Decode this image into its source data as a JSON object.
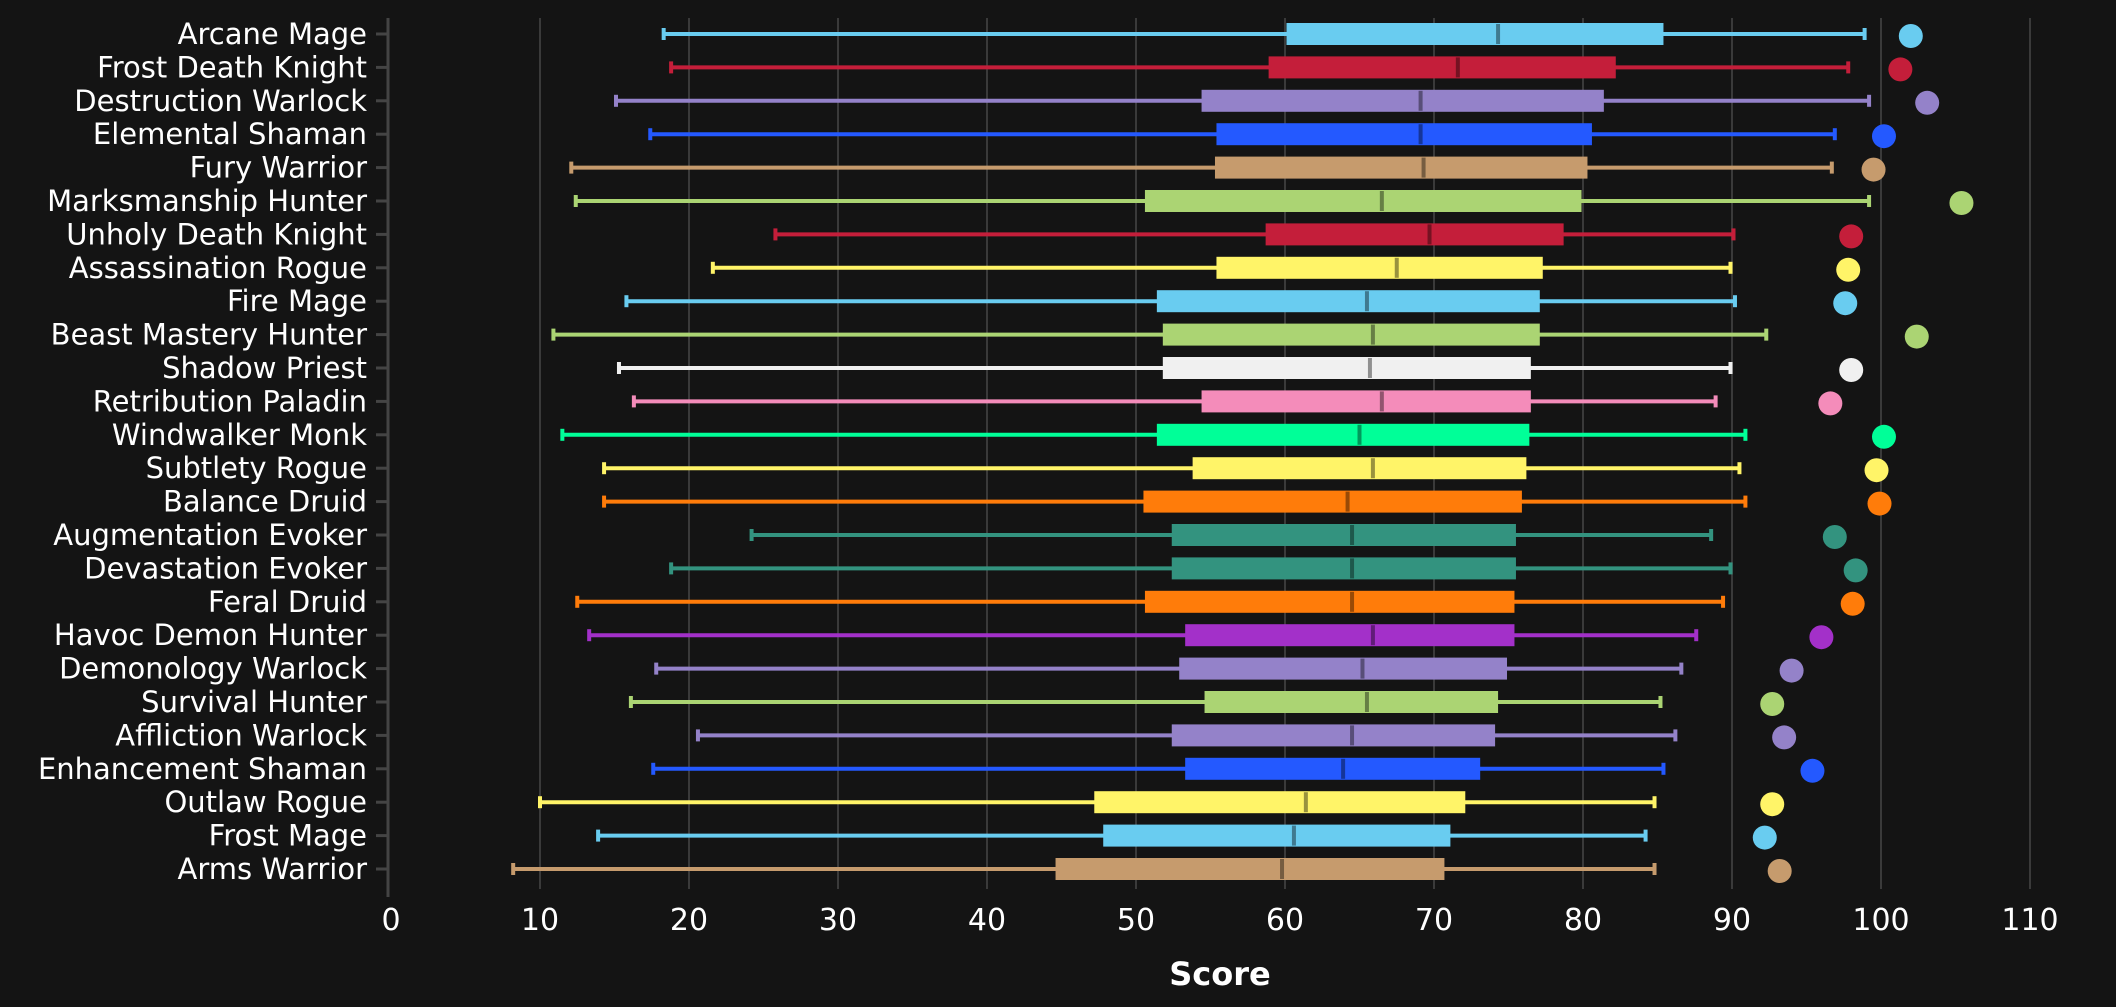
{
  "chart_data": {
    "type": "boxplot",
    "title": "",
    "xlabel": "Score",
    "ylabel": "",
    "xlim": [
      0,
      112
    ],
    "xticks": [
      0,
      10,
      20,
      30,
      40,
      50,
      60,
      70,
      80,
      90,
      100,
      110
    ],
    "grid": "vertical",
    "fields": [
      "whisker_low",
      "q1",
      "median",
      "q3",
      "whisker_high",
      "max_point"
    ],
    "series": [
      {
        "name": "Arcane Mage",
        "color": "#69ccf0",
        "values": [
          18.3,
          60.1,
          74.3,
          85.4,
          98.9,
          102.0
        ]
      },
      {
        "name": "Frost Death Knight",
        "color": "#c41e3a",
        "values": [
          18.8,
          58.9,
          71.6,
          82.2,
          97.8,
          101.3
        ]
      },
      {
        "name": "Destruction Warlock",
        "color": "#9482c9",
        "values": [
          15.1,
          54.4,
          69.1,
          81.4,
          99.2,
          103.1
        ]
      },
      {
        "name": "Elemental Shaman",
        "color": "#2459ff",
        "values": [
          17.4,
          55.4,
          69.1,
          80.6,
          96.9,
          100.2
        ]
      },
      {
        "name": "Fury Warrior",
        "color": "#c69b6d",
        "values": [
          12.1,
          55.3,
          69.3,
          80.3,
          96.7,
          99.5
        ]
      },
      {
        "name": "Marksmanship Hunter",
        "color": "#abd473",
        "values": [
          12.4,
          50.6,
          66.5,
          79.9,
          99.2,
          105.4
        ]
      },
      {
        "name": "Unholy Death Knight",
        "color": "#c41e3a",
        "values": [
          25.8,
          58.7,
          69.7,
          78.7,
          90.1,
          98.0
        ]
      },
      {
        "name": "Assassination Rogue",
        "color": "#fff468",
        "values": [
          21.6,
          55.4,
          67.5,
          77.3,
          89.9,
          97.8
        ]
      },
      {
        "name": "Fire Mage",
        "color": "#69ccf0",
        "values": [
          15.8,
          51.4,
          65.5,
          77.1,
          90.2,
          97.6
        ]
      },
      {
        "name": "Beast Mastery Hunter",
        "color": "#abd473",
        "values": [
          10.9,
          51.8,
          65.9,
          77.1,
          92.3,
          102.4
        ]
      },
      {
        "name": "Shadow Priest",
        "color": "#f0f0f0",
        "values": [
          15.3,
          51.8,
          65.7,
          76.5,
          89.9,
          98.0
        ]
      },
      {
        "name": "Retribution Paladin",
        "color": "#f48cba",
        "values": [
          16.3,
          54.4,
          66.5,
          76.5,
          88.9,
          96.6
        ]
      },
      {
        "name": "Windwalker Monk",
        "color": "#00ff98",
        "values": [
          11.5,
          51.4,
          65.0,
          76.4,
          90.9,
          100.2
        ]
      },
      {
        "name": "Subtlety Rogue",
        "color": "#fff468",
        "values": [
          14.3,
          53.8,
          65.9,
          76.2,
          90.5,
          99.7
        ]
      },
      {
        "name": "Balance Druid",
        "color": "#ff7c0a",
        "values": [
          14.3,
          50.5,
          64.2,
          75.9,
          90.9,
          99.9
        ]
      },
      {
        "name": "Augmentation Evoker",
        "color": "#33937f",
        "values": [
          24.2,
          52.4,
          64.5,
          75.5,
          88.6,
          96.9
        ]
      },
      {
        "name": "Devastation Evoker",
        "color": "#33937f",
        "values": [
          18.8,
          52.4,
          64.5,
          75.5,
          89.9,
          98.3
        ]
      },
      {
        "name": "Feral Druid",
        "color": "#ff7c0a",
        "values": [
          12.5,
          50.6,
          64.5,
          75.4,
          89.4,
          98.1
        ]
      },
      {
        "name": "Havoc Demon Hunter",
        "color": "#a330c9",
        "values": [
          13.3,
          53.3,
          65.9,
          75.4,
          87.6,
          96.0
        ]
      },
      {
        "name": "Demonology Warlock",
        "color": "#9482c9",
        "values": [
          17.8,
          52.9,
          65.2,
          74.9,
          86.6,
          94.0
        ]
      },
      {
        "name": "Survival Hunter",
        "color": "#abd473",
        "values": [
          16.1,
          54.6,
          65.5,
          74.3,
          85.2,
          92.7
        ]
      },
      {
        "name": "Affliction Warlock",
        "color": "#9482c9",
        "values": [
          20.6,
          52.4,
          64.5,
          74.1,
          86.2,
          93.5
        ]
      },
      {
        "name": "Enhancement Shaman",
        "color": "#2459ff",
        "values": [
          17.6,
          53.3,
          63.9,
          73.1,
          85.4,
          95.4
        ]
      },
      {
        "name": "Outlaw Rogue",
        "color": "#fff468",
        "values": [
          10.0,
          47.2,
          61.4,
          72.1,
          84.8,
          92.7
        ]
      },
      {
        "name": "Frost Mage",
        "color": "#69ccf0",
        "values": [
          13.9,
          47.8,
          60.6,
          71.1,
          84.2,
          92.2
        ]
      },
      {
        "name": "Arms Warrior",
        "color": "#c69b6d",
        "values": [
          8.2,
          44.6,
          59.8,
          70.7,
          84.8,
          93.2
        ]
      }
    ]
  }
}
